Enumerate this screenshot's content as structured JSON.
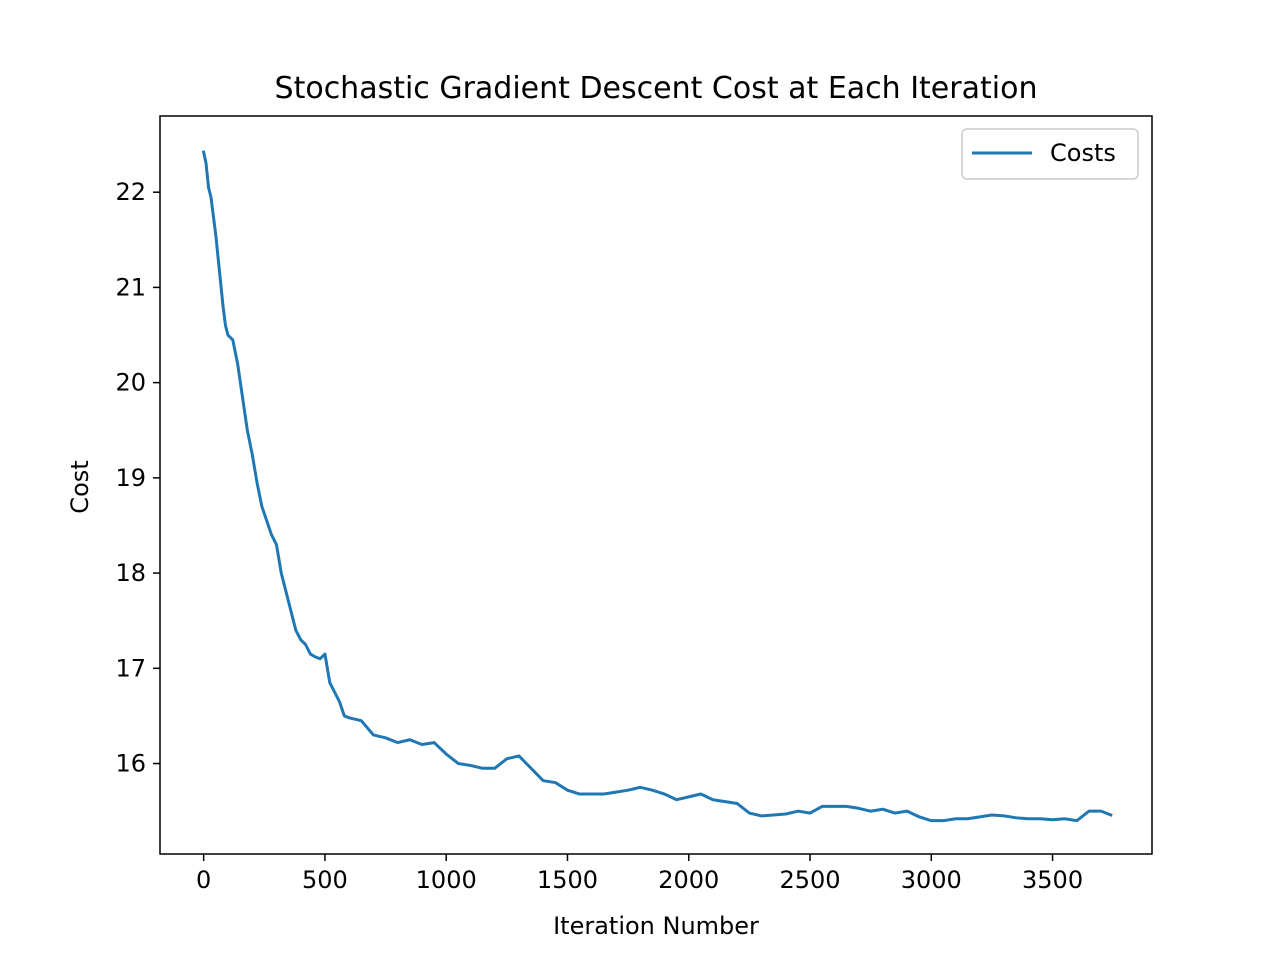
{
  "chart_data": {
    "type": "line",
    "title": "Stochastic Gradient Descent Cost at Each Iteration",
    "xlabel": "Iteration Number",
    "ylabel": "Cost",
    "xlim": [
      -180,
      3910
    ],
    "ylim": [
      15.05,
      22.8
    ],
    "xticks": [
      0,
      500,
      1000,
      1500,
      2000,
      2500,
      3000,
      3500
    ],
    "xtick_labels": [
      "0",
      "500",
      "1000",
      "1500",
      "2000",
      "2500",
      "3000",
      "3500"
    ],
    "yticks": [
      16,
      17,
      18,
      19,
      20,
      21,
      22
    ],
    "ytick_labels": [
      "16",
      "17",
      "18",
      "19",
      "20",
      "21",
      "22"
    ],
    "grid": false,
    "legend": "top-right",
    "series": [
      {
        "name": "Costs",
        "color": "#1f77b4",
        "points": [
          [
            0,
            22.42
          ],
          [
            10,
            22.3
          ],
          [
            20,
            22.05
          ],
          [
            30,
            21.95
          ],
          [
            40,
            21.75
          ],
          [
            50,
            21.55
          ],
          [
            60,
            21.3
          ],
          [
            70,
            21.05
          ],
          [
            80,
            20.8
          ],
          [
            90,
            20.6
          ],
          [
            100,
            20.5
          ],
          [
            120,
            20.45
          ],
          [
            140,
            20.2
          ],
          [
            160,
            19.85
          ],
          [
            180,
            19.5
          ],
          [
            200,
            19.25
          ],
          [
            220,
            18.95
          ],
          [
            240,
            18.7
          ],
          [
            260,
            18.55
          ],
          [
            280,
            18.4
          ],
          [
            300,
            18.3
          ],
          [
            320,
            18.0
          ],
          [
            340,
            17.8
          ],
          [
            360,
            17.6
          ],
          [
            380,
            17.4
          ],
          [
            400,
            17.3
          ],
          [
            420,
            17.25
          ],
          [
            440,
            17.15
          ],
          [
            460,
            17.12
          ],
          [
            480,
            17.1
          ],
          [
            500,
            17.15
          ],
          [
            520,
            16.85
          ],
          [
            540,
            16.75
          ],
          [
            560,
            16.65
          ],
          [
            580,
            16.5
          ],
          [
            600,
            16.48
          ],
          [
            650,
            16.45
          ],
          [
            700,
            16.3
          ],
          [
            750,
            16.27
          ],
          [
            800,
            16.22
          ],
          [
            850,
            16.25
          ],
          [
            900,
            16.2
          ],
          [
            950,
            16.22
          ],
          [
            1000,
            16.1
          ],
          [
            1050,
            16.0
          ],
          [
            1100,
            15.98
          ],
          [
            1150,
            15.95
          ],
          [
            1200,
            15.95
          ],
          [
            1250,
            16.05
          ],
          [
            1300,
            16.08
          ],
          [
            1350,
            15.95
          ],
          [
            1400,
            15.82
          ],
          [
            1450,
            15.8
          ],
          [
            1500,
            15.72
          ],
          [
            1550,
            15.68
          ],
          [
            1600,
            15.68
          ],
          [
            1650,
            15.68
          ],
          [
            1700,
            15.7
          ],
          [
            1750,
            15.72
          ],
          [
            1800,
            15.75
          ],
          [
            1850,
            15.72
          ],
          [
            1900,
            15.68
          ],
          [
            1950,
            15.62
          ],
          [
            2000,
            15.65
          ],
          [
            2050,
            15.68
          ],
          [
            2100,
            15.62
          ],
          [
            2150,
            15.6
          ],
          [
            2200,
            15.58
          ],
          [
            2250,
            15.48
          ],
          [
            2300,
            15.45
          ],
          [
            2350,
            15.46
          ],
          [
            2400,
            15.47
          ],
          [
            2450,
            15.5
          ],
          [
            2500,
            15.48
          ],
          [
            2550,
            15.55
          ],
          [
            2600,
            15.55
          ],
          [
            2650,
            15.55
          ],
          [
            2700,
            15.53
          ],
          [
            2750,
            15.5
          ],
          [
            2800,
            15.52
          ],
          [
            2850,
            15.48
          ],
          [
            2900,
            15.5
          ],
          [
            2950,
            15.44
          ],
          [
            3000,
            15.4
          ],
          [
            3050,
            15.4
          ],
          [
            3100,
            15.42
          ],
          [
            3150,
            15.42
          ],
          [
            3200,
            15.44
          ],
          [
            3250,
            15.46
          ],
          [
            3300,
            15.45
          ],
          [
            3350,
            15.43
          ],
          [
            3400,
            15.42
          ],
          [
            3450,
            15.42
          ],
          [
            3500,
            15.41
          ],
          [
            3550,
            15.42
          ],
          [
            3600,
            15.4
          ],
          [
            3650,
            15.5
          ],
          [
            3700,
            15.5
          ],
          [
            3740,
            15.46
          ]
        ]
      }
    ]
  }
}
